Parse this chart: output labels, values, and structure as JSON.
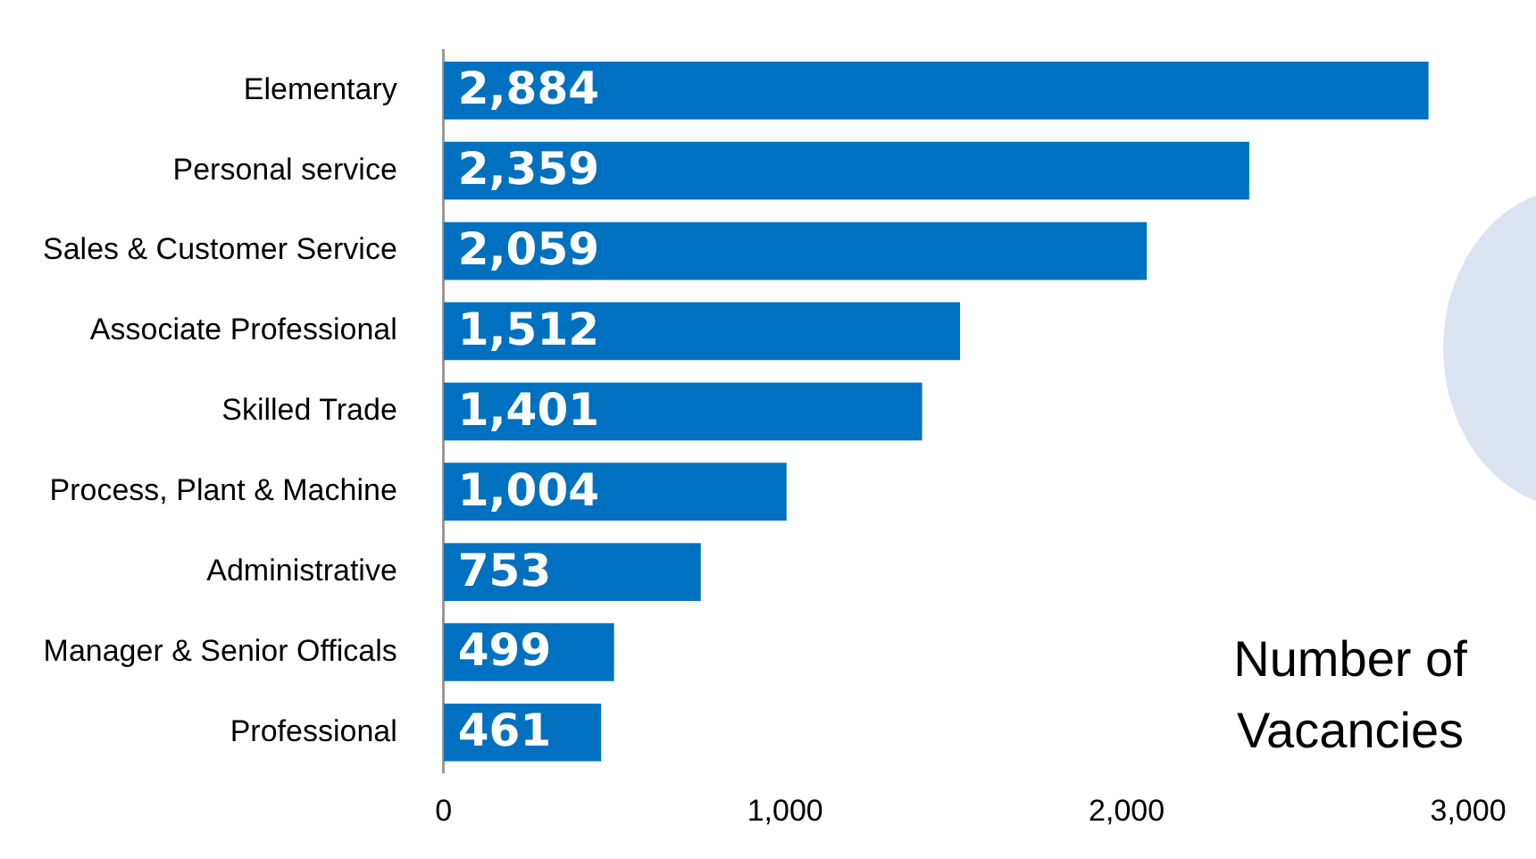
{
  "chart_data": {
    "type": "bar",
    "orientation": "horizontal",
    "xlabel": "Number of Vacancies",
    "categories": [
      "Elementary",
      "Personal service",
      "Sales & Customer Service",
      "Associate Professional",
      "Skilled Trade",
      "Process, Plant & Machine",
      "Administrative",
      "Manager & Senior Officals",
      "Professional"
    ],
    "values": [
      2884,
      2359,
      2059,
      1512,
      1401,
      1004,
      753,
      499,
      461
    ],
    "value_labels": [
      "2,884",
      "2,359",
      "2,059",
      "1,512",
      "1,401",
      "1,004",
      "753",
      "499",
      "461"
    ],
    "color": "#0070c0",
    "xlim": [
      0,
      3000
    ],
    "xticks": [
      0,
      {
        "value": 1000,
        "label": "1,000"
      },
      {
        "value": 2000,
        "label": "2,000"
      },
      {
        "value": 3000,
        "label": "3,000"
      }
    ],
    "grid": false,
    "legend": false
  }
}
